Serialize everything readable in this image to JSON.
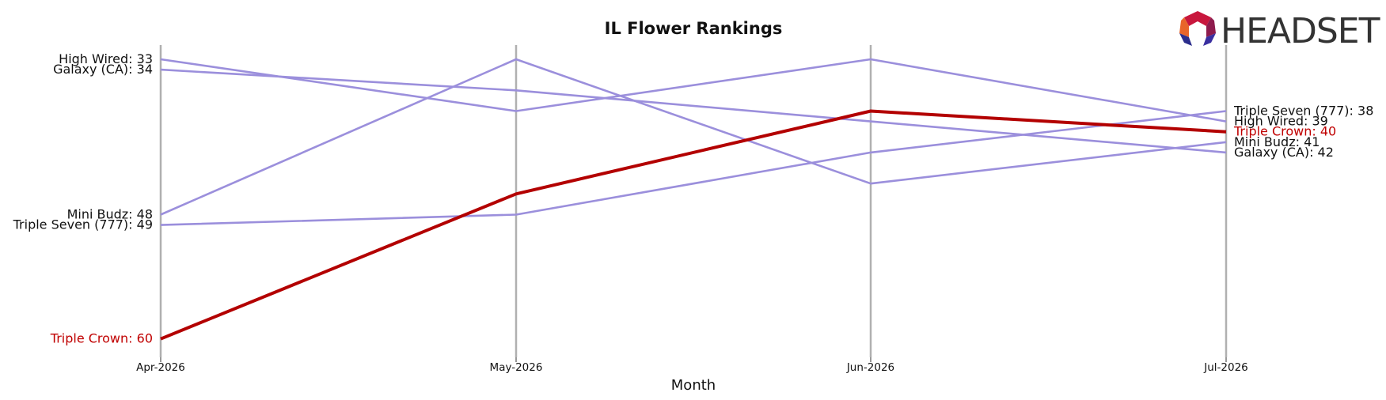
{
  "logo": {
    "text": "HEADSET"
  },
  "colors": {
    "highlight": "#b30000",
    "other": "#9b8fdc",
    "axis": "#b0b0b0",
    "highlight_text": "#c00000"
  },
  "chart_data": {
    "type": "line",
    "subtype": "bump",
    "title": "IL Flower Rankings",
    "xlabel": "Month",
    "ylabel": "",
    "categories": [
      "Apr-2026",
      "May-2026",
      "Jun-2026",
      "Jul-2026"
    ],
    "y_axis": "rank, inverted (lower rank at top)",
    "series": [
      {
        "name": "High Wired",
        "values": [
          33,
          38,
          33,
          39
        ],
        "highlight": false
      },
      {
        "name": "Galaxy (CA)",
        "values": [
          34,
          36,
          39,
          42
        ],
        "highlight": false
      },
      {
        "name": "Mini Budz",
        "values": [
          48,
          33,
          45,
          41
        ],
        "highlight": false
      },
      {
        "name": "Triple Seven (777)",
        "values": [
          49,
          48,
          42,
          38
        ],
        "highlight": false
      },
      {
        "name": "Triple Crown",
        "values": [
          60,
          46,
          38,
          40
        ],
        "highlight": true
      }
    ],
    "start_labels": [
      "High Wired: 33",
      "Galaxy (CA): 34",
      "Mini Budz: 48",
      "Triple Seven (777): 49",
      "Triple Crown: 60"
    ],
    "end_labels": [
      "Triple Seven (777): 38",
      "High Wired: 39",
      "Triple Crown: 40",
      "Mini Budz: 41",
      "Galaxy (CA): 42"
    ],
    "grid": false,
    "legend": "none"
  }
}
